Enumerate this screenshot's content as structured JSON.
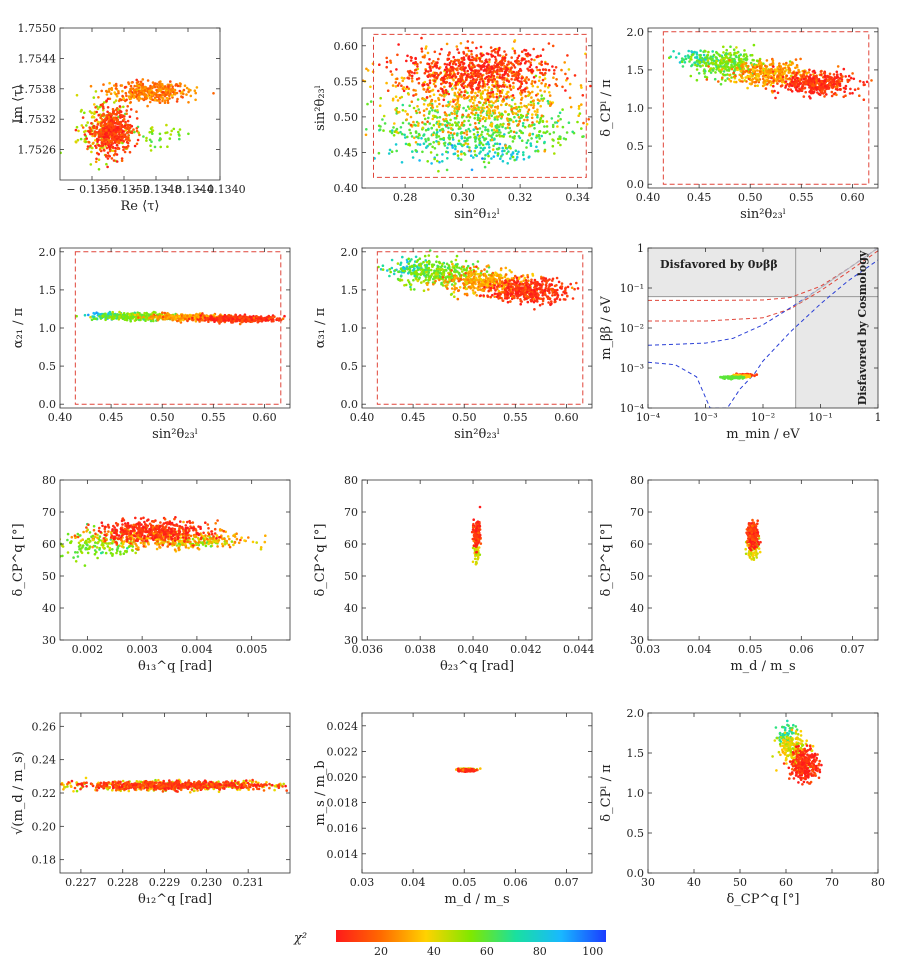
{
  "figure": {
    "colorbar": {
      "label": "χ²",
      "ticks": [
        "20",
        "40",
        "60",
        "80",
        "100"
      ],
      "range": [
        3,
        105
      ],
      "colors": [
        "#ff1a1a",
        "#ff6a00",
        "#ffd200",
        "#7fe800",
        "#19e0a0",
        "#19b8ff",
        "#1a3cff"
      ]
    }
  },
  "chart_data": [
    {
      "id": "p1",
      "type": "scatter",
      "xlabel": "Re ⟨τ⟩",
      "ylabel": "Im ⟨τ⟩",
      "xlim": [
        -0.136,
        -0.134
      ],
      "ylim": [
        1.752,
        1.755
      ],
      "xticks": [
        -0.1356,
        -0.1352,
        -0.1348,
        -0.1344,
        -0.134
      ],
      "xticklabels": [
        "− 0.1356",
        "− 0.1352",
        "− 0.1348",
        "− 0.1344",
        "− 0.1340"
      ],
      "yticks": [
        1.7526,
        1.7532,
        1.7538,
        1.7544,
        1.755
      ],
      "yticklabels": [
        "1.7526",
        "1.7532",
        "1.7538",
        "1.7544",
        "1.7550"
      ],
      "clusters": [
        {
          "cx": -0.13535,
          "cy": 1.75295,
          "sx": 0.00012,
          "sy": 0.00022,
          "chi": 10,
          "n": 500
        },
        {
          "cx": -0.1349,
          "cy": 1.75375,
          "sx": 0.00025,
          "sy": 0.0001,
          "chi": 22,
          "n": 380
        },
        {
          "cx": -0.13545,
          "cy": 1.753,
          "sx": 0.00016,
          "sy": 0.0003,
          "chi": 45,
          "n": 160
        },
        {
          "cx": -0.1348,
          "cy": 1.7529,
          "sx": 0.0002,
          "sy": 0.00012,
          "chi": 55,
          "n": 40
        }
      ]
    },
    {
      "id": "p2",
      "type": "scatter",
      "xlabel": "sin²θ₁₂ˡ",
      "ylabel": "sin²θ₂₃ˡ",
      "xlim": [
        0.265,
        0.345
      ],
      "ylim": [
        0.4,
        0.625
      ],
      "xticks": [
        0.28,
        0.3,
        0.32,
        0.34
      ],
      "xticklabels": [
        "0.28",
        "0.30",
        "0.32",
        "0.34"
      ],
      "yticks": [
        0.4,
        0.45,
        0.5,
        0.55,
        0.6
      ],
      "yticklabels": [
        "0.40",
        "0.45",
        "0.50",
        "0.55",
        "0.60"
      ],
      "box": [
        0.269,
        0.343,
        0.415,
        0.616
      ],
      "clusters": [
        {
          "cx": 0.305,
          "cy": 0.565,
          "sx": 0.013,
          "sy": 0.016,
          "chi": 8,
          "n": 650
        },
        {
          "cx": 0.305,
          "cy": 0.53,
          "sx": 0.016,
          "sy": 0.028,
          "chi": 30,
          "n": 600
        },
        {
          "cx": 0.305,
          "cy": 0.485,
          "sx": 0.017,
          "sy": 0.022,
          "chi": 60,
          "n": 500
        },
        {
          "cx": 0.305,
          "cy": 0.455,
          "sx": 0.014,
          "sy": 0.012,
          "chi": 80,
          "n": 120
        }
      ]
    },
    {
      "id": "p3",
      "type": "scatter",
      "xlabel": "sin²θ₂₃ˡ",
      "ylabel": "δ_CPˡ / π",
      "xlim": [
        0.4,
        0.625
      ],
      "ylim": [
        -0.05,
        2.05
      ],
      "xticks": [
        0.4,
        0.45,
        0.5,
        0.55,
        0.6
      ],
      "xticklabels": [
        "0.40",
        "0.45",
        "0.50",
        "0.55",
        "0.60"
      ],
      "yticks": [
        0.0,
        0.5,
        1.0,
        1.5,
        2.0
      ],
      "yticklabels": [
        "0.0",
        "0.5",
        "1.0",
        "1.5",
        "2.0"
      ],
      "box": [
        0.415,
        0.616,
        0.0,
        2.0
      ],
      "clusters": [
        {
          "cx": 0.565,
          "cy": 1.32,
          "sx": 0.018,
          "sy": 0.07,
          "chi": 8,
          "n": 420
        },
        {
          "cx": 0.52,
          "cy": 1.45,
          "sx": 0.02,
          "sy": 0.08,
          "chi": 28,
          "n": 350
        },
        {
          "cx": 0.475,
          "cy": 1.58,
          "sx": 0.018,
          "sy": 0.09,
          "chi": 55,
          "n": 300
        },
        {
          "cx": 0.45,
          "cy": 1.65,
          "sx": 0.012,
          "sy": 0.06,
          "chi": 75,
          "n": 60
        }
      ]
    },
    {
      "id": "p4",
      "type": "scatter",
      "xlabel": "sin²θ₂₃ˡ",
      "ylabel": "α₂₁ / π",
      "xlim": [
        0.4,
        0.625
      ],
      "ylim": [
        -0.05,
        2.05
      ],
      "xticks": [
        0.4,
        0.45,
        0.5,
        0.55,
        0.6
      ],
      "xticklabels": [
        "0.40",
        "0.45",
        "0.50",
        "0.55",
        "0.60"
      ],
      "yticks": [
        0.0,
        0.5,
        1.0,
        1.5,
        2.0
      ],
      "yticklabels": [
        "0.0",
        "0.5",
        "1.0",
        "1.5",
        "2.0"
      ],
      "box": [
        0.415,
        0.616,
        0.0,
        2.0
      ],
      "clusters": [
        {
          "cx": 0.575,
          "cy": 1.12,
          "sx": 0.018,
          "sy": 0.02,
          "chi": 8,
          "n": 380
        },
        {
          "cx": 0.525,
          "cy": 1.14,
          "sx": 0.02,
          "sy": 0.02,
          "chi": 28,
          "n": 300
        },
        {
          "cx": 0.475,
          "cy": 1.15,
          "sx": 0.02,
          "sy": 0.025,
          "chi": 55,
          "n": 250
        },
        {
          "cx": 0.445,
          "cy": 1.16,
          "sx": 0.01,
          "sy": 0.02,
          "chi": 80,
          "n": 50
        }
      ]
    },
    {
      "id": "p5",
      "type": "scatter",
      "xlabel": "sin²θ₂₃ˡ",
      "ylabel": "α₃₁ / π",
      "xlim": [
        0.4,
        0.625
      ],
      "ylim": [
        -0.05,
        2.05
      ],
      "xticks": [
        0.4,
        0.45,
        0.5,
        0.55,
        0.6
      ],
      "xticklabels": [
        "0.40",
        "0.45",
        "0.50",
        "0.55",
        "0.60"
      ],
      "yticks": [
        0.0,
        0.5,
        1.0,
        1.5,
        2.0
      ],
      "yticklabels": [
        "0.0",
        "0.5",
        "1.0",
        "1.5",
        "2.0"
      ],
      "box": [
        0.415,
        0.616,
        0.0,
        2.0
      ],
      "clusters": [
        {
          "cx": 0.565,
          "cy": 1.48,
          "sx": 0.018,
          "sy": 0.08,
          "chi": 8,
          "n": 420
        },
        {
          "cx": 0.52,
          "cy": 1.6,
          "sx": 0.02,
          "sy": 0.08,
          "chi": 28,
          "n": 350
        },
        {
          "cx": 0.475,
          "cy": 1.72,
          "sx": 0.02,
          "sy": 0.09,
          "chi": 55,
          "n": 300
        },
        {
          "cx": 0.445,
          "cy": 1.8,
          "sx": 0.012,
          "sy": 0.06,
          "chi": 78,
          "n": 60
        }
      ]
    },
    {
      "id": "p6",
      "type": "line",
      "xlabel": "m_min / eV",
      "ylabel": "m_ββ / eV",
      "scale": "log",
      "xlim": [
        0.0001,
        1
      ],
      "ylim": [
        0.0001,
        1
      ],
      "xticklabels": [
        "10⁻⁴",
        "10⁻³",
        "10⁻²",
        "10⁻¹",
        "1"
      ],
      "yticklabels": [
        "10⁻⁴",
        "10⁻³",
        "10⁻²",
        "10⁻¹",
        "1"
      ],
      "annotations": [
        "Disfavored by 0νββ",
        "Disfavored by Cosmology"
      ],
      "exclusion_limit_mbb": 0.061,
      "cosmology_limit_mmin": 0.037,
      "lines": {
        "io_upper": [
          [
            0.0001,
            0.049
          ],
          [
            0.001,
            0.049
          ],
          [
            0.01,
            0.05
          ],
          [
            0.03,
            0.058
          ],
          [
            0.1,
            0.11
          ],
          [
            0.3,
            0.3
          ],
          [
            1,
            1
          ]
        ],
        "io_lower": [
          [
            0.0001,
            0.015
          ],
          [
            0.001,
            0.015
          ],
          [
            0.01,
            0.018
          ],
          [
            0.03,
            0.03
          ],
          [
            0.1,
            0.085
          ],
          [
            0.3,
            0.25
          ],
          [
            1,
            0.85
          ]
        ],
        "no_upper": [
          [
            0.0001,
            0.0037
          ],
          [
            0.001,
            0.0042
          ],
          [
            0.003,
            0.0055
          ],
          [
            0.01,
            0.012
          ],
          [
            0.03,
            0.032
          ],
          [
            0.1,
            0.1
          ],
          [
            0.3,
            0.3
          ],
          [
            1,
            1
          ]
        ],
        "no_lower": [
          [
            0.0001,
            0.0014
          ],
          [
            0.0003,
            0.0012
          ],
          [
            0.0007,
            0.0006
          ],
          [
            0.0012,
            0.0001
          ],
          [
            0.0024,
            0.0001
          ],
          [
            0.004,
            0.0003
          ],
          [
            0.007,
            0.0007
          ],
          [
            0.01,
            0.0015
          ],
          [
            0.03,
            0.008
          ],
          [
            0.1,
            0.04
          ],
          [
            0.3,
            0.15
          ],
          [
            1,
            0.5
          ]
        ],
        "reference": [
          [
            0.037,
            0.037
          ],
          [
            1,
            1
          ]
        ]
      },
      "points": [
        {
          "x": 0.0047,
          "y": 0.00066,
          "chi": 10
        },
        {
          "x": 0.0038,
          "y": 0.00062,
          "chi": 35
        },
        {
          "x": 0.003,
          "y": 0.00058,
          "chi": 60
        }
      ]
    },
    {
      "id": "p7",
      "type": "scatter",
      "xlabel": "θ₁₃^q [rad]",
      "ylabel": "δ_CP^q [°]",
      "xlim": [
        0.0015,
        0.0057
      ],
      "ylim": [
        30,
        80
      ],
      "xticks": [
        0.002,
        0.003,
        0.004,
        0.005
      ],
      "xticklabels": [
        "0.002",
        "0.003",
        "0.004",
        "0.005"
      ],
      "yticks": [
        30,
        40,
        50,
        60,
        70,
        80
      ],
      "yticklabels": [
        "30",
        "40",
        "50",
        "60",
        "70",
        "80"
      ],
      "clusters": [
        {
          "cx": 0.0032,
          "cy": 64,
          "sx": 0.0005,
          "sy": 1.6,
          "chi": 8,
          "n": 450
        },
        {
          "cx": 0.0035,
          "cy": 61.5,
          "sx": 0.0007,
          "sy": 1.5,
          "chi": 30,
          "n": 300
        },
        {
          "cx": 0.0022,
          "cy": 60,
          "sx": 0.0004,
          "sy": 2.5,
          "chi": 55,
          "n": 150
        },
        {
          "cx": 0.004,
          "cy": 60.5,
          "sx": 0.0004,
          "sy": 0.8,
          "chi": 50,
          "n": 80
        }
      ]
    },
    {
      "id": "p8",
      "type": "scatter",
      "xlabel": "θ₂₃^q [rad]",
      "ylabel": "δ_CP^q [°]",
      "xlim": [
        0.0358,
        0.0445
      ],
      "ylim": [
        30,
        80
      ],
      "xticks": [
        0.036,
        0.038,
        0.04,
        0.042,
        0.044
      ],
      "xticklabels": [
        "0.036",
        "0.038",
        "0.040",
        "0.042",
        "0.044"
      ],
      "yticks": [
        30,
        40,
        50,
        60,
        70,
        80
      ],
      "yticklabels": [
        "30",
        "40",
        "50",
        "60",
        "70",
        "80"
      ],
      "clusters": [
        {
          "cx": 0.04015,
          "cy": 63,
          "sx": 6e-05,
          "sy": 2,
          "chi": 8,
          "n": 200
        },
        {
          "cx": 0.04012,
          "cy": 58,
          "sx": 5e-05,
          "sy": 1.8,
          "chi": 40,
          "n": 60
        }
      ]
    },
    {
      "id": "p9",
      "type": "scatter",
      "xlabel": "m_d / m_s",
      "ylabel": "δ_CP^q [°]",
      "xlim": [
        0.03,
        0.075
      ],
      "ylim": [
        30,
        80
      ],
      "xticks": [
        0.03,
        0.04,
        0.05,
        0.06,
        0.07
      ],
      "xticklabels": [
        "0.03",
        "0.04",
        "0.05",
        "0.06",
        "0.07"
      ],
      "yticks": [
        30,
        40,
        50,
        60,
        70,
        80
      ],
      "yticklabels": [
        "30",
        "40",
        "50",
        "60",
        "70",
        "80"
      ],
      "clusters": [
        {
          "cx": 0.0505,
          "cy": 63,
          "sx": 0.0005,
          "sy": 1.8,
          "chi": 8,
          "n": 260
        },
        {
          "cx": 0.0505,
          "cy": 58.5,
          "sx": 0.0006,
          "sy": 1.5,
          "chi": 40,
          "n": 80
        }
      ]
    },
    {
      "id": "p10",
      "type": "scatter",
      "xlabel": "θ₁₂^q [rad]",
      "ylabel": "√(m_d / m_s)",
      "xlim": [
        0.2265,
        0.232
      ],
      "ylim": [
        0.172,
        0.268
      ],
      "xticks": [
        0.227,
        0.228,
        0.229,
        0.23,
        0.231
      ],
      "xticklabels": [
        "0.227",
        "0.228",
        "0.229",
        "0.230",
        "0.231"
      ],
      "yticks": [
        0.18,
        0.2,
        0.22,
        0.24,
        0.26
      ],
      "yticklabels": [
        "0.18",
        "0.20",
        "0.22",
        "0.24",
        "0.26"
      ],
      "clusters": [
        {
          "cx": 0.2292,
          "cy": 0.2245,
          "sx": 0.0012,
          "sy": 0.0012,
          "chi": 10,
          "n": 600
        },
        {
          "cx": 0.2292,
          "cy": 0.2245,
          "sx": 0.0014,
          "sy": 0.0016,
          "chi": 40,
          "n": 300
        }
      ]
    },
    {
      "id": "p11",
      "type": "scatter",
      "xlabel": "m_d / m_s",
      "ylabel": "m_s / m_b",
      "xlim": [
        0.03,
        0.075
      ],
      "ylim": [
        0.0125,
        0.025
      ],
      "xticks": [
        0.03,
        0.04,
        0.05,
        0.06,
        0.07
      ],
      "xticklabels": [
        "0.03",
        "0.04",
        "0.05",
        "0.06",
        "0.07"
      ],
      "yticks": [
        0.014,
        0.016,
        0.018,
        0.02,
        0.022,
        0.024
      ],
      "yticklabels": [
        "0.014",
        "0.016",
        "0.018",
        "0.020",
        "0.022",
        "0.024"
      ],
      "clusters": [
        {
          "cx": 0.0505,
          "cy": 0.02052,
          "sx": 0.0007,
          "sy": 4e-05,
          "chi": 8,
          "n": 200
        },
        {
          "cx": 0.0505,
          "cy": 0.02062,
          "sx": 0.0008,
          "sy": 3e-05,
          "chi": 40,
          "n": 60
        }
      ]
    },
    {
      "id": "p12",
      "type": "scatter",
      "xlabel": "δ_CP^q [°]",
      "ylabel": "δ_CPˡ / π",
      "xlim": [
        30,
        80
      ],
      "ylim": [
        0.0,
        2.0
      ],
      "xticks": [
        30,
        40,
        50,
        60,
        70,
        80
      ],
      "xticklabels": [
        "30",
        "40",
        "50",
        "60",
        "70",
        "80"
      ],
      "yticks": [
        0.0,
        0.5,
        1.0,
        1.5,
        2.0
      ],
      "yticklabels": [
        "0.0",
        "0.5",
        "1.0",
        "1.5",
        "2.0"
      ],
      "clusters": [
        {
          "cx": 64,
          "cy": 1.35,
          "sx": 1.5,
          "sy": 0.1,
          "chi": 8,
          "n": 300
        },
        {
          "cx": 61.5,
          "cy": 1.55,
          "sx": 1.6,
          "sy": 0.1,
          "chi": 40,
          "n": 180
        },
        {
          "cx": 60,
          "cy": 1.72,
          "sx": 1.2,
          "sy": 0.08,
          "chi": 70,
          "n": 60
        }
      ]
    }
  ]
}
